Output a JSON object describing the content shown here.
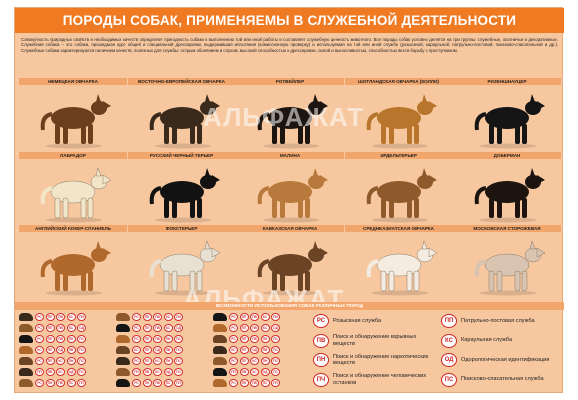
{
  "title": "ПОРОДЫ СОБАК, ПРИМЕНЯЕМЫ В СЛУЖЕБНОЙ ДЕЯТЕЛЬНОСТИ",
  "intro": "Совокупность природных свойств и необходимых качеств определяет пригодность собаки к выполнению той или иной работы и составляет служебную ценность животного. Все породы собак условно делятся на три группы: служебные, охотничьи и декоративные. Служебная собака – это собака, прошедшая курс общей и специальной дрессировки, выдержавшая испытания (комиссионную проверку) и используемая на той или иной службе (розыскной, караульной, патрульно-постовой, поисково-спасательной и др.). Служебные собаки характеризуются наличием качеств, полезных для службы: острым обонянием и слухом, высокой способностью к дрессировке, силой и выносливостью, способностью вести борьбу с преступником.",
  "watermark": "АЛЬФАЖАТ",
  "breeds": [
    {
      "name": "НЕМЕЦКАЯ ОВЧАРКА",
      "color": "#6b3e1e"
    },
    {
      "name": "ВОСТОЧНО-ЕВРОПЕЙСКАЯ ОВЧАРКА",
      "color": "#3a2a1c"
    },
    {
      "name": "РОТВЕЙЛЕР",
      "color": "#1c140e"
    },
    {
      "name": "ШОТЛАНДСКАЯ ОВЧАРКА (КОЛЛИ)",
      "color": "#b8762c"
    },
    {
      "name": "РИЗЕНШНАУЦЕР",
      "color": "#151515"
    },
    {
      "name": "ЛАБРАДОР",
      "color": "#f2e6c8"
    },
    {
      "name": "РУССКИЙ ЧЕРНЫЙ ТЕРЬЕР",
      "color": "#121212"
    },
    {
      "name": "МАЛИНА",
      "color": "#b87a3c"
    },
    {
      "name": "ЭРДЕЛЬТЕРЬЕР",
      "color": "#8e5a2c"
    },
    {
      "name": "ДОБЕРМАН",
      "color": "#1d1410"
    },
    {
      "name": "АНГЛИЙСКИЙ КОКЕР-СПАНИЕЛЬ",
      "color": "#b0682c"
    },
    {
      "name": "ФОКСТЕРЬЕР",
      "color": "#e8e0d0"
    },
    {
      "name": "КАВКАЗСКАЯ ОВЧАРКА",
      "color": "#6a4424"
    },
    {
      "name": "СРЕДНЕАЗИАТСКАЯ ОВЧАРКА",
      "color": "#f4ece0"
    },
    {
      "name": "МОСКОВСКАЯ СТОРОЖЕВАЯ",
      "color": "#d8c4b0"
    }
  ],
  "usage_title": "ВОЗМОЖНОСТИ ИСПОЛЬЗОВАНИЯ СОБАК РАЗЛИЧНЫХ ПОРОД",
  "usage_rows": [
    {
      "badges": [
        "РС",
        "ПП",
        "ПВ",
        "КС",
        "ПН"
      ]
    },
    {
      "badges": [
        "РС",
        "ПП",
        "ПВ",
        "КС",
        "ОД"
      ]
    },
    {
      "badges": [
        "РС",
        "ПП",
        "ПВ",
        "ПН",
        "ПС"
      ]
    },
    {
      "badges": [
        "КС",
        "ПП",
        "ОД",
        "ПВ",
        "ПС"
      ]
    },
    {
      "badges": [
        "РС",
        "ПП",
        "КС",
        "ПН",
        "ПС"
      ]
    },
    {
      "badges": [
        "ПП",
        "ПВ",
        "КС",
        "ОД",
        "ПС"
      ]
    },
    {
      "badges": [
        "РС",
        "ПН",
        "ПВ",
        "ПС",
        "ПП"
      ]
    }
  ],
  "legend": [
    {
      "code": "РС",
      "text": "Розыскная служба"
    },
    {
      "code": "ПВ",
      "text": "Поиск и обнаружение взрывных веществ"
    },
    {
      "code": "ПН",
      "text": "Поиск и обнаружение наркотических веществ"
    },
    {
      "code": "ПЧ",
      "text": "Поиск и обнаружение человеческих останков"
    },
    {
      "code": "ПП",
      "text": "Патрульно-постовая служба"
    },
    {
      "code": "КС",
      "text": "Караульная служба"
    },
    {
      "code": "ОД",
      "text": "Одорологическая идентификация"
    },
    {
      "code": "ПС",
      "text": "Поисково-спасательная служба"
    }
  ]
}
